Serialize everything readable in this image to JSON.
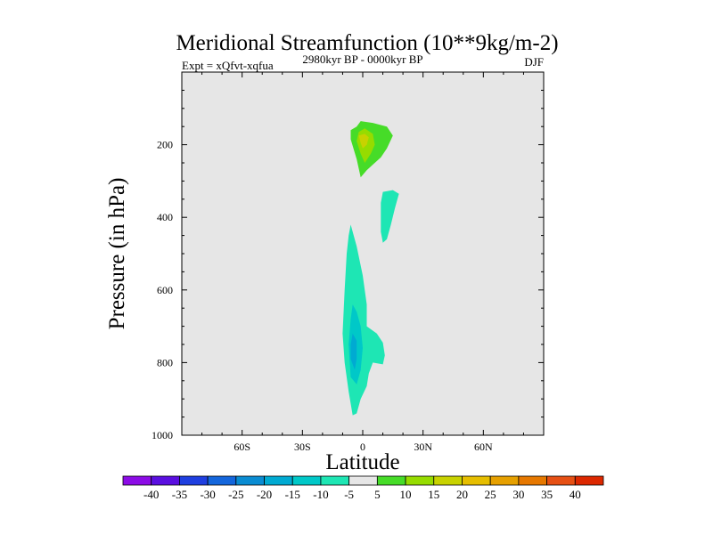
{
  "chart_data": {
    "type": "contour",
    "title": "Meridional Streamfunction (10**9kg/m-2)",
    "subtitle_left": "Expt = xQfvt-xqfua",
    "subtitle_center": "2980kyr BP - 0000kyr BP",
    "subtitle_right": "DJF",
    "xlabel": "Latitude",
    "ylabel": "Pressure (in hPa)",
    "xlim": [
      -90,
      90
    ],
    "ylim": [
      0,
      1000
    ],
    "y_inverted": true,
    "background_color": "#e6e6e6",
    "x_ticks": [
      {
        "value": -60,
        "label": "60S"
      },
      {
        "value": -30,
        "label": "30S"
      },
      {
        "value": 0,
        "label": "0"
      },
      {
        "value": 30,
        "label": "30N"
      },
      {
        "value": 60,
        "label": "60N"
      }
    ],
    "y_ticks": [
      {
        "value": 200,
        "label": "200"
      },
      {
        "value": 400,
        "label": "400"
      },
      {
        "value": 600,
        "label": "600"
      },
      {
        "value": 800,
        "label": "800"
      },
      {
        "value": 1000,
        "label": "1000"
      }
    ],
    "colorbar": {
      "labels": [
        "-40",
        "-35",
        "-30",
        "-25",
        "-20",
        "-15",
        "-10",
        "-5",
        "5",
        "10",
        "15",
        "20",
        "25",
        "30",
        "35",
        "40"
      ],
      "colors": [
        "#8c0ce6",
        "#5a0fe0",
        "#1f3fe0",
        "#1466dc",
        "#0a8cd2",
        "#00aad2",
        "#00c8c8",
        "#1ee6b4",
        "#e6e6e6",
        "#46dc28",
        "#96dc00",
        "#c8d200",
        "#e6be00",
        "#e6a000",
        "#e67800",
        "#e65014",
        "#dc2800"
      ]
    },
    "regions": [
      {
        "name": "upper-positive-cell",
        "level": 5,
        "color": "#46dc28",
        "points": [
          [
            -3,
            150
          ],
          [
            -1,
            135
          ],
          [
            5,
            140
          ],
          [
            12,
            150
          ],
          [
            15,
            175
          ],
          [
            12,
            210
          ],
          [
            9,
            235
          ],
          [
            5,
            255
          ],
          [
            2,
            270
          ],
          [
            -1,
            290
          ],
          [
            -3,
            240
          ],
          [
            -6,
            185
          ],
          [
            -6,
            160
          ]
        ]
      },
      {
        "name": "upper-positive-core",
        "level": 10,
        "color": "#96dc00",
        "points": [
          [
            -2,
            165
          ],
          [
            1,
            155
          ],
          [
            5,
            170
          ],
          [
            6,
            200
          ],
          [
            4,
            225
          ],
          [
            1,
            250
          ],
          [
            -1,
            225
          ],
          [
            -3,
            190
          ]
        ]
      },
      {
        "name": "upper-positive-peak",
        "level": 15,
        "color": "#c8d200",
        "points": [
          [
            -2,
            175
          ],
          [
            1,
            170
          ],
          [
            3,
            180
          ],
          [
            2,
            200
          ],
          [
            0,
            210
          ],
          [
            -1,
            195
          ]
        ]
      },
      {
        "name": "mid-negative-cell",
        "level": -5,
        "color": "#1ee6b4",
        "points": [
          [
            10,
            330
          ],
          [
            15,
            325
          ],
          [
            18,
            335
          ],
          [
            16,
            375
          ],
          [
            14,
            420
          ],
          [
            12,
            460
          ],
          [
            10,
            470
          ],
          [
            9,
            440
          ],
          [
            9,
            360
          ]
        ]
      },
      {
        "name": "lower-negative-cell",
        "level": -5,
        "color": "#1ee6b4",
        "points": [
          [
            -6,
            420
          ],
          [
            -3,
            480
          ],
          [
            0,
            560
          ],
          [
            2,
            640
          ],
          [
            2,
            700
          ],
          [
            7,
            720
          ],
          [
            10,
            745
          ],
          [
            11,
            780
          ],
          [
            10,
            805
          ],
          [
            5,
            800
          ],
          [
            3,
            830
          ],
          [
            2,
            865
          ],
          [
            -1,
            900
          ],
          [
            -3,
            940
          ],
          [
            -5,
            945
          ],
          [
            -7,
            880
          ],
          [
            -9,
            800
          ],
          [
            -10,
            720
          ],
          [
            -9,
            600
          ],
          [
            -8,
            500
          ],
          [
            -7,
            450
          ]
        ]
      },
      {
        "name": "lower-negative-core",
        "level": -10,
        "color": "#00c8c8",
        "points": [
          [
            -5,
            640
          ],
          [
            -3,
            660
          ],
          [
            -1,
            700
          ],
          [
            0,
            760
          ],
          [
            -1,
            820
          ],
          [
            -3,
            860
          ],
          [
            -6,
            840
          ],
          [
            -7,
            750
          ],
          [
            -6,
            680
          ]
        ]
      },
      {
        "name": "lower-negative-peak",
        "level": -15,
        "color": "#00aad2",
        "points": [
          [
            -5,
            720
          ],
          [
            -3,
            740
          ],
          [
            -3,
            790
          ],
          [
            -4,
            820
          ],
          [
            -6,
            790
          ],
          [
            -6,
            750
          ]
        ]
      }
    ]
  }
}
